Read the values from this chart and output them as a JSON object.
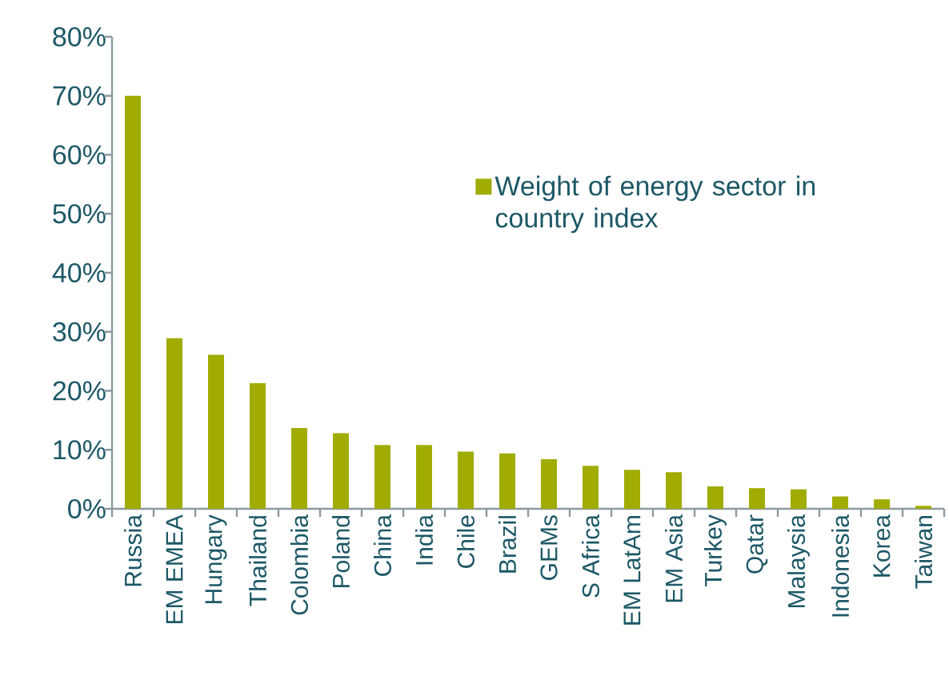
{
  "chart_data": {
    "type": "bar",
    "categories": [
      "Russia",
      "EM EMEA",
      "Hungary",
      "Thailand",
      "Colombia",
      "Poland",
      "China",
      "India",
      "Chile",
      "Brazil",
      "GEMs",
      "S Africa",
      "EM LatAm",
      "EM Asia",
      "Turkey",
      "Qatar",
      "Malaysia",
      "Indonesia",
      "Korea",
      "Taiwan"
    ],
    "series": [
      {
        "name": "Weight of energy sector in country index",
        "color": "#a0ac00",
        "values": [
          70,
          28.9,
          26.1,
          21.3,
          13.7,
          12.8,
          10.8,
          10.8,
          9.7,
          9.4,
          8.4,
          7.3,
          6.6,
          6.2,
          3.8,
          3.5,
          3.3,
          2.1,
          1.6,
          0.5
        ]
      }
    ],
    "ylim": [
      0,
      80
    ],
    "yticks": [
      {
        "value": 0,
        "label": "0%"
      },
      {
        "value": 10,
        "label": "10%"
      },
      {
        "value": 20,
        "label": "20%"
      },
      {
        "value": 30,
        "label": "30%"
      },
      {
        "value": 40,
        "label": "40%"
      },
      {
        "value": 50,
        "label": "50%"
      },
      {
        "value": 60,
        "label": "60%"
      },
      {
        "value": 70,
        "label": "70%"
      },
      {
        "value": 80,
        "label": "80%"
      }
    ],
    "legend": "top right",
    "grid": false
  }
}
